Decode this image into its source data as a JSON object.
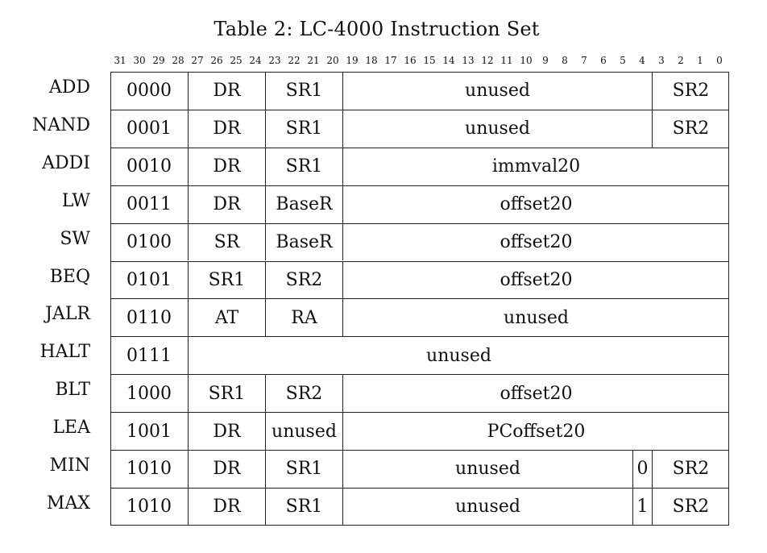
{
  "caption": "Table 2: LC-4000 Instruction Set",
  "bit_numbers": [
    "31",
    "30",
    "29",
    "28",
    "27",
    "26",
    "25",
    "24",
    "23",
    "22",
    "21",
    "20",
    "19",
    "18",
    "17",
    "16",
    "15",
    "14",
    "13",
    "12",
    "11",
    "10",
    "9",
    "8",
    "7",
    "6",
    "5",
    "4",
    "3",
    "2",
    "1",
    "0"
  ],
  "instructions": [
    {
      "mnemonic": "ADD",
      "fields": [
        {
          "text": "0000",
          "bits": 4
        },
        {
          "text": "DR",
          "bits": 4
        },
        {
          "text": "SR1",
          "bits": 4
        },
        {
          "text": "unused",
          "bits": 16
        },
        {
          "text": "SR2",
          "bits": 4
        }
      ]
    },
    {
      "mnemonic": "NAND",
      "fields": [
        {
          "text": "0001",
          "bits": 4
        },
        {
          "text": "DR",
          "bits": 4
        },
        {
          "text": "SR1",
          "bits": 4
        },
        {
          "text": "unused",
          "bits": 16
        },
        {
          "text": "SR2",
          "bits": 4
        }
      ]
    },
    {
      "mnemonic": "ADDI",
      "fields": [
        {
          "text": "0010",
          "bits": 4
        },
        {
          "text": "DR",
          "bits": 4
        },
        {
          "text": "SR1",
          "bits": 4
        },
        {
          "text": "immval20",
          "bits": 20
        }
      ]
    },
    {
      "mnemonic": "LW",
      "fields": [
        {
          "text": "0011",
          "bits": 4
        },
        {
          "text": "DR",
          "bits": 4
        },
        {
          "text": "BaseR",
          "bits": 4
        },
        {
          "text": "offset20",
          "bits": 20
        }
      ]
    },
    {
      "mnemonic": "SW",
      "fields": [
        {
          "text": "0100",
          "bits": 4
        },
        {
          "text": "SR",
          "bits": 4
        },
        {
          "text": "BaseR",
          "bits": 4
        },
        {
          "text": "offset20",
          "bits": 20
        }
      ]
    },
    {
      "mnemonic": "BEQ",
      "fields": [
        {
          "text": "0101",
          "bits": 4
        },
        {
          "text": "SR1",
          "bits": 4
        },
        {
          "text": "SR2",
          "bits": 4
        },
        {
          "text": "offset20",
          "bits": 20
        }
      ]
    },
    {
      "mnemonic": "JALR",
      "fields": [
        {
          "text": "0110",
          "bits": 4
        },
        {
          "text": "AT",
          "bits": 4
        },
        {
          "text": "RA",
          "bits": 4
        },
        {
          "text": "unused",
          "bits": 20
        }
      ]
    },
    {
      "mnemonic": "HALT",
      "fields": [
        {
          "text": "0111",
          "bits": 4
        },
        {
          "text": "unused",
          "bits": 28
        }
      ]
    },
    {
      "mnemonic": "BLT",
      "fields": [
        {
          "text": "1000",
          "bits": 4
        },
        {
          "text": "SR1",
          "bits": 4
        },
        {
          "text": "SR2",
          "bits": 4
        },
        {
          "text": "offset20",
          "bits": 20
        }
      ]
    },
    {
      "mnemonic": "LEA",
      "fields": [
        {
          "text": "1001",
          "bits": 4
        },
        {
          "text": "DR",
          "bits": 4
        },
        {
          "text": "unused",
          "bits": 4
        },
        {
          "text": "PCoffset20",
          "bits": 20
        }
      ]
    },
    {
      "mnemonic": "MIN",
      "fields": [
        {
          "text": "1010",
          "bits": 4
        },
        {
          "text": "DR",
          "bits": 4
        },
        {
          "text": "SR1",
          "bits": 4
        },
        {
          "text": "unused",
          "bits": 15
        },
        {
          "text": "0",
          "bits": 1
        },
        {
          "text": "SR2",
          "bits": 4
        }
      ]
    },
    {
      "mnemonic": "MAX",
      "fields": [
        {
          "text": "1010",
          "bits": 4
        },
        {
          "text": "DR",
          "bits": 4
        },
        {
          "text": "SR1",
          "bits": 4
        },
        {
          "text": "unused",
          "bits": 15
        },
        {
          "text": "1",
          "bits": 1
        },
        {
          "text": "SR2",
          "bits": 4
        }
      ]
    }
  ]
}
